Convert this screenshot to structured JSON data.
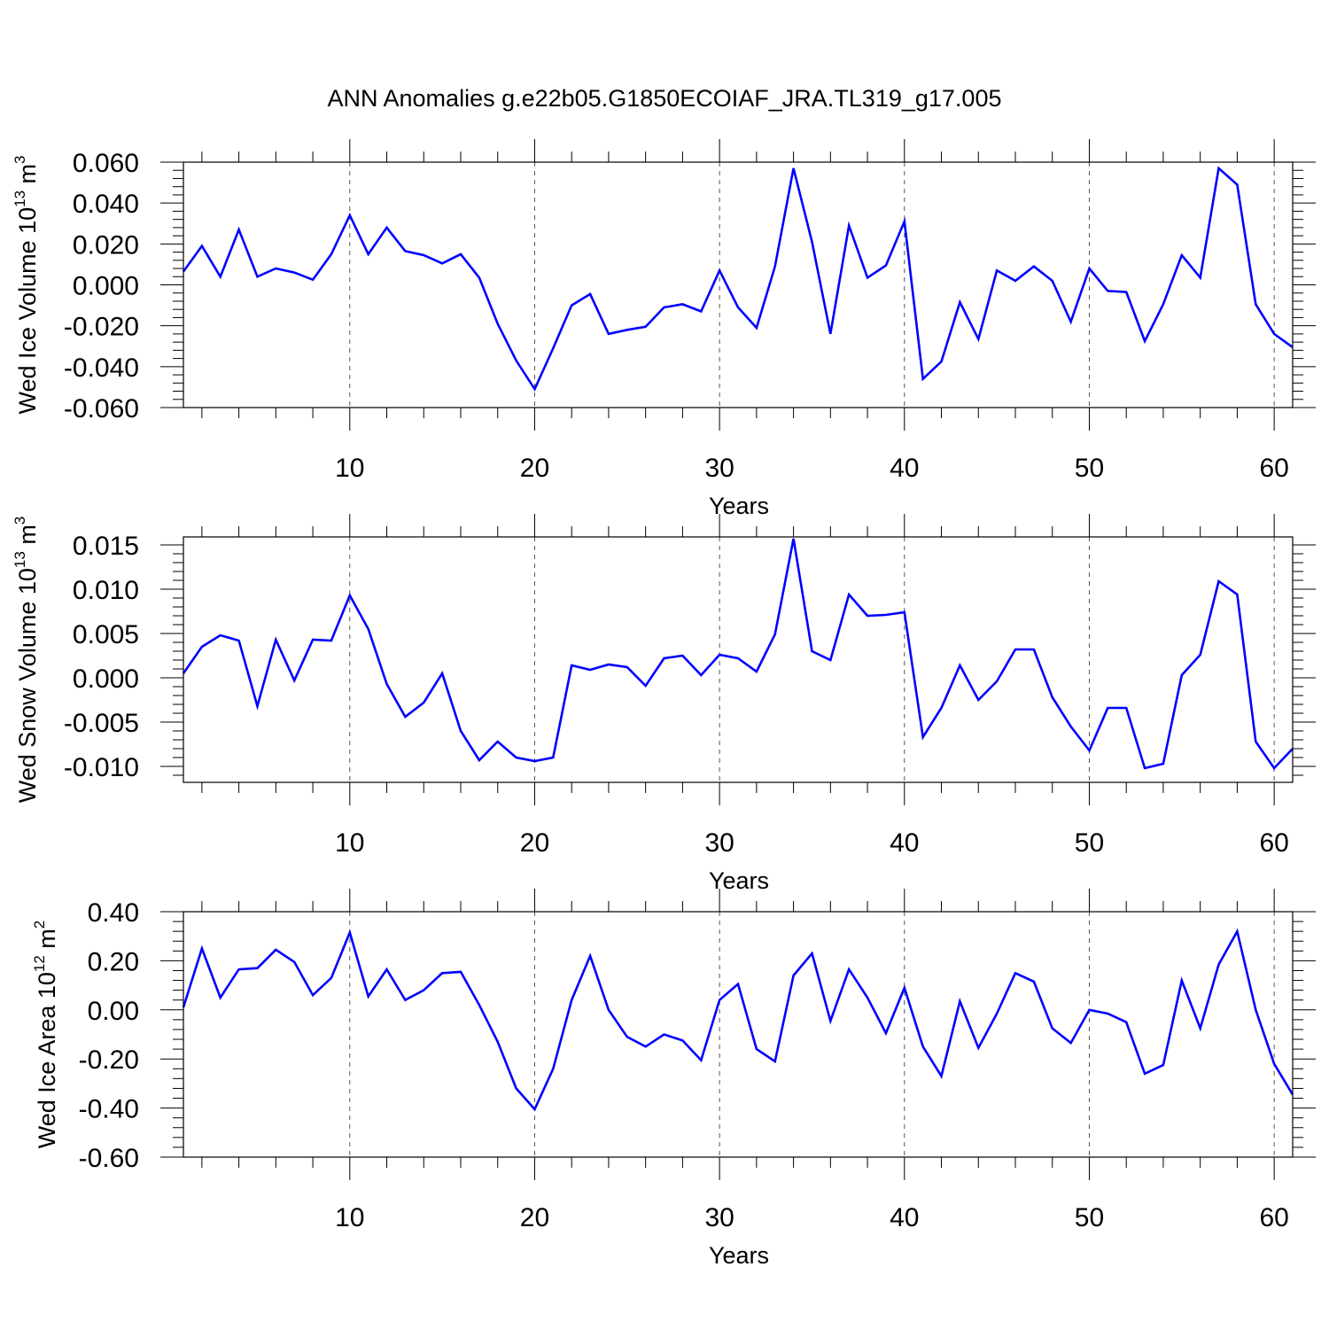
{
  "figure": {
    "title": "ANN Anomalies g.e22b05.G1850ECOIAF_JRA.TL319_g17.005",
    "line_color": "#0000ff",
    "grid_color": "#555555"
  },
  "chart_data": [
    {
      "type": "line",
      "title": "",
      "xlabel": "Years",
      "ylabel": {
        "text": "Wed Ice Volume 10",
        "exp": "13",
        "unit": "m",
        "unit_exp": "3"
      },
      "xlim": [
        1,
        61
      ],
      "ylim": [
        -0.06,
        0.06
      ],
      "yticks": [
        -0.06,
        -0.04,
        -0.02,
        0.0,
        0.02,
        0.04,
        0.06
      ],
      "ytick_labels": [
        "-0.060",
        "-0.040",
        "-0.020",
        "0.000",
        "0.020",
        "0.040",
        "0.060"
      ],
      "xticks": [
        10,
        20,
        30,
        40,
        50,
        60
      ],
      "xtick_labels": [
        "10",
        "20",
        "30",
        "40",
        "50",
        "60"
      ],
      "grid": "vertical dashed at major x ticks",
      "series": [
        {
          "x": [
            1,
            2,
            3,
            4,
            5,
            6,
            7,
            8,
            9,
            10,
            11,
            12,
            13,
            14,
            15,
            16,
            17,
            18,
            19,
            20,
            21,
            22,
            23,
            24,
            25,
            26,
            27,
            28,
            29,
            30,
            31,
            32,
            33,
            34,
            35,
            36,
            37,
            38,
            39,
            40,
            41,
            42,
            43,
            44,
            45,
            46,
            47,
            48,
            49,
            50,
            51,
            52,
            53,
            54,
            55,
            56,
            57,
            58,
            59,
            60,
            61
          ],
          "values": [
            0.0065,
            0.019,
            0.004,
            0.027,
            0.004,
            0.008,
            0.006,
            0.0025,
            0.015,
            0.034,
            0.015,
            0.028,
            0.0165,
            0.0145,
            0.0105,
            0.015,
            0.0035,
            -0.019,
            -0.037,
            -0.051,
            -0.031,
            -0.01,
            -0.0045,
            -0.024,
            -0.022,
            -0.0205,
            -0.011,
            -0.0095,
            -0.013,
            0.007,
            -0.011,
            -0.021,
            0.009,
            0.057,
            0.021,
            -0.024,
            0.029,
            0.0035,
            0.0095,
            0.031,
            -0.046,
            -0.0375,
            -0.0085,
            -0.0265,
            0.007,
            0.002,
            0.009,
            0.002,
            -0.018,
            0.008,
            -0.003,
            -0.0035,
            -0.0275,
            -0.0095,
            0.0145,
            0.0035,
            0.057,
            0.049,
            -0.0095,
            -0.024,
            -0.0305
          ]
        }
      ]
    },
    {
      "type": "line",
      "title": "",
      "xlabel": "Years",
      "ylabel": {
        "text": "Wed Snow Volume 10",
        "exp": "13",
        "unit": "m",
        "unit_exp": "3"
      },
      "xlim": [
        1,
        61
      ],
      "ylim": [
        -0.0118,
        0.0159
      ],
      "yticks": [
        -0.01,
        -0.005,
        0.0,
        0.005,
        0.01,
        0.015
      ],
      "ytick_labels": [
        "-0.010",
        "-0.005",
        "0.000",
        "0.005",
        "0.010",
        "0.015"
      ],
      "xticks": [
        10,
        20,
        30,
        40,
        50,
        60
      ],
      "xtick_labels": [
        "10",
        "20",
        "30",
        "40",
        "50",
        "60"
      ],
      "grid": "vertical dashed at major x ticks",
      "series": [
        {
          "x": [
            1,
            2,
            3,
            4,
            5,
            6,
            7,
            8,
            9,
            10,
            11,
            12,
            13,
            14,
            15,
            16,
            17,
            18,
            19,
            20,
            21,
            22,
            23,
            24,
            25,
            26,
            27,
            28,
            29,
            30,
            31,
            32,
            33,
            34,
            35,
            36,
            37,
            38,
            39,
            40,
            41,
            42,
            43,
            44,
            45,
            46,
            47,
            48,
            49,
            50,
            51,
            52,
            53,
            54,
            55,
            56,
            57,
            58,
            59,
            60,
            61
          ],
          "values": [
            0.0005,
            0.0035,
            0.0048,
            0.0042,
            -0.0032,
            0.0043,
            -0.0003,
            0.0043,
            0.0042,
            0.0093,
            0.0055,
            -0.0007,
            -0.0044,
            -0.0028,
            0.0005,
            -0.006,
            -0.0093,
            -0.0072,
            -0.009,
            -0.0094,
            -0.009,
            0.0014,
            0.0009,
            0.0015,
            0.0012,
            -0.0009,
            0.0022,
            0.0025,
            0.0003,
            0.0026,
            0.0022,
            0.0007,
            0.0049,
            0.0157,
            0.003,
            0.002,
            0.0094,
            0.007,
            0.0071,
            0.0074,
            -0.0067,
            -0.0034,
            0.0014,
            -0.0025,
            -0.0004,
            0.0032,
            0.0032,
            -0.0022,
            -0.0055,
            -0.0082,
            -0.0034,
            -0.0034,
            -0.0102,
            -0.0097,
            0.0003,
            0.0026,
            0.0109,
            0.0094,
            -0.0072,
            -0.0102,
            -0.008
          ]
        }
      ]
    },
    {
      "type": "line",
      "title": "",
      "xlabel": "Years",
      "ylabel": {
        "text": "Wed Ice Area 10",
        "exp": "12",
        "unit": "m",
        "unit_exp": "2"
      },
      "xlim": [
        1,
        61
      ],
      "ylim": [
        -0.6,
        0.4
      ],
      "yticks": [
        -0.6,
        -0.4,
        -0.2,
        0.0,
        0.2,
        0.4
      ],
      "ytick_labels": [
        "-0.60",
        "-0.40",
        "-0.20",
        "0.00",
        "0.20",
        "0.40"
      ],
      "xticks": [
        10,
        20,
        30,
        40,
        50,
        60
      ],
      "xtick_labels": [
        "10",
        "20",
        "30",
        "40",
        "50",
        "60"
      ],
      "grid": "vertical dashed at major x ticks",
      "series": [
        {
          "x": [
            1,
            2,
            3,
            4,
            5,
            6,
            7,
            8,
            9,
            10,
            11,
            12,
            13,
            14,
            15,
            16,
            17,
            18,
            19,
            20,
            21,
            22,
            23,
            24,
            25,
            26,
            27,
            28,
            29,
            30,
            31,
            32,
            33,
            34,
            35,
            36,
            37,
            38,
            39,
            40,
            41,
            42,
            43,
            44,
            45,
            46,
            47,
            48,
            49,
            50,
            51,
            52,
            53,
            54,
            55,
            56,
            57,
            58,
            59,
            60,
            61
          ],
          "values": [
            0.01,
            0.25,
            0.05,
            0.165,
            0.17,
            0.245,
            0.195,
            0.06,
            0.13,
            0.315,
            0.055,
            0.165,
            0.04,
            0.08,
            0.15,
            0.155,
            0.02,
            -0.13,
            -0.32,
            -0.405,
            -0.24,
            0.04,
            0.22,
            0.0,
            -0.11,
            -0.15,
            -0.1,
            -0.125,
            -0.205,
            0.04,
            0.105,
            -0.16,
            -0.21,
            0.14,
            0.23,
            -0.045,
            0.165,
            0.05,
            -0.095,
            0.09,
            -0.15,
            -0.27,
            0.035,
            -0.155,
            -0.015,
            0.15,
            0.115,
            -0.075,
            -0.135,
            0.0,
            -0.015,
            -0.05,
            -0.26,
            -0.225,
            0.12,
            -0.075,
            0.185,
            0.32,
            0.0,
            -0.22,
            -0.345
          ]
        }
      ]
    }
  ]
}
